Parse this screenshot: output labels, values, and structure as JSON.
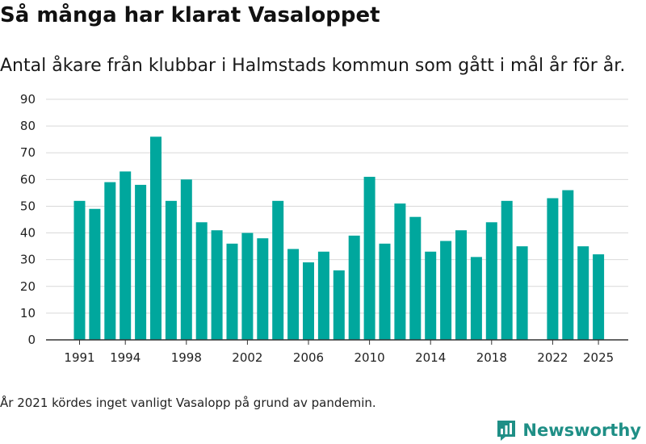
{
  "header": {
    "title": "Så många har klarat Vasaloppet",
    "subtitle": "Antal åkare från klubbar i Halmstads kommun som gått i mål år för år."
  },
  "footer": {
    "note": "År 2021 kördes inget vanligt Vasalopp på grund av pandemin.",
    "brand": "Newsworthy",
    "brand_icon": "bar-chart-logo-icon"
  },
  "colors": {
    "bar": "#00A79D",
    "grid": "#d9d9d9",
    "axis": "#333333",
    "brand": "#1f8f86"
  },
  "chart_data": {
    "type": "bar",
    "title": "Så många har klarat Vasaloppet",
    "subtitle": "Antal åkare från klubbar i Halmstads kommun som gått i mål år för år.",
    "xlabel": "",
    "ylabel": "",
    "ylim": [
      0,
      90
    ],
    "yticks": [
      0,
      10,
      20,
      30,
      40,
      50,
      60,
      70,
      80,
      90
    ],
    "xticks": [
      1991,
      1994,
      1998,
      2002,
      2006,
      2010,
      2014,
      2018,
      2022,
      2025
    ],
    "grid": true,
    "legend": "none",
    "categories": [
      1991,
      1992,
      1993,
      1994,
      1995,
      1996,
      1997,
      1998,
      1999,
      2000,
      2001,
      2002,
      2003,
      2004,
      2005,
      2006,
      2007,
      2008,
      2009,
      2010,
      2011,
      2012,
      2013,
      2014,
      2015,
      2016,
      2017,
      2018,
      2019,
      2020,
      2021,
      2022,
      2023,
      2024,
      2025
    ],
    "values": [
      52,
      49,
      59,
      63,
      58,
      76,
      52,
      60,
      44,
      41,
      36,
      40,
      38,
      52,
      34,
      29,
      33,
      26,
      39,
      61,
      36,
      51,
      46,
      33,
      37,
      41,
      31,
      44,
      52,
      35,
      null,
      53,
      56,
      35,
      32
    ]
  }
}
